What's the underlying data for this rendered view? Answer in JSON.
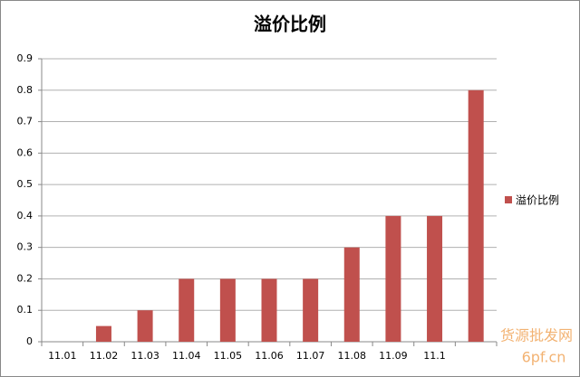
{
  "chart_data": {
    "type": "bar",
    "title": "溢价比例",
    "categories": [
      "11.01",
      "11.02",
      "11.03",
      "11.04",
      "11.05",
      "11.06",
      "11.07",
      "11.08",
      "11.09",
      "11.1",
      null
    ],
    "series": [
      {
        "name": "溢价比例",
        "color": "#c0504d",
        "values": [
          0,
          0.05,
          0.1,
          0.2,
          0.2,
          0.2,
          0.2,
          0.3,
          0.4,
          0.4,
          0.8
        ]
      }
    ],
    "ylim": [
      0,
      0.9
    ],
    "yticks": [
      0,
      0.1,
      0.2,
      0.3,
      0.4,
      0.5,
      0.6,
      0.7,
      0.8,
      0.9
    ],
    "grid": true,
    "legend": "right",
    "watermark": [
      "货源批发网",
      "6pf.cn"
    ]
  }
}
